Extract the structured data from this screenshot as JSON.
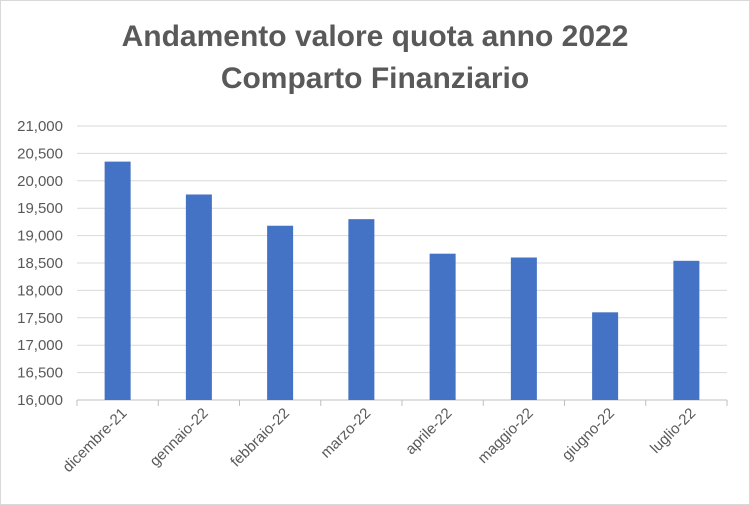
{
  "chart_data": {
    "type": "bar",
    "title_lines": [
      "Andamento valore quota anno 2022",
      "Comparto Finanziario"
    ],
    "categories": [
      "dicembre-21",
      "gennaio-22",
      "febbraio-22",
      "marzo-22",
      "aprile-22",
      "maggio-22",
      "giugno-22",
      "luglio-22"
    ],
    "values": [
      20350,
      19750,
      19180,
      19300,
      18670,
      18600,
      17600,
      18540
    ],
    "ylim": [
      16000,
      21000
    ],
    "y_ticks": [
      "16,000",
      "16,500",
      "17,000",
      "17,500",
      "18,000",
      "18,500",
      "19,000",
      "19,500",
      "20,000",
      "20,500",
      "21,000"
    ],
    "grid": true,
    "bar_color": "#4472c4",
    "grid_color": "#d9d9d9"
  }
}
